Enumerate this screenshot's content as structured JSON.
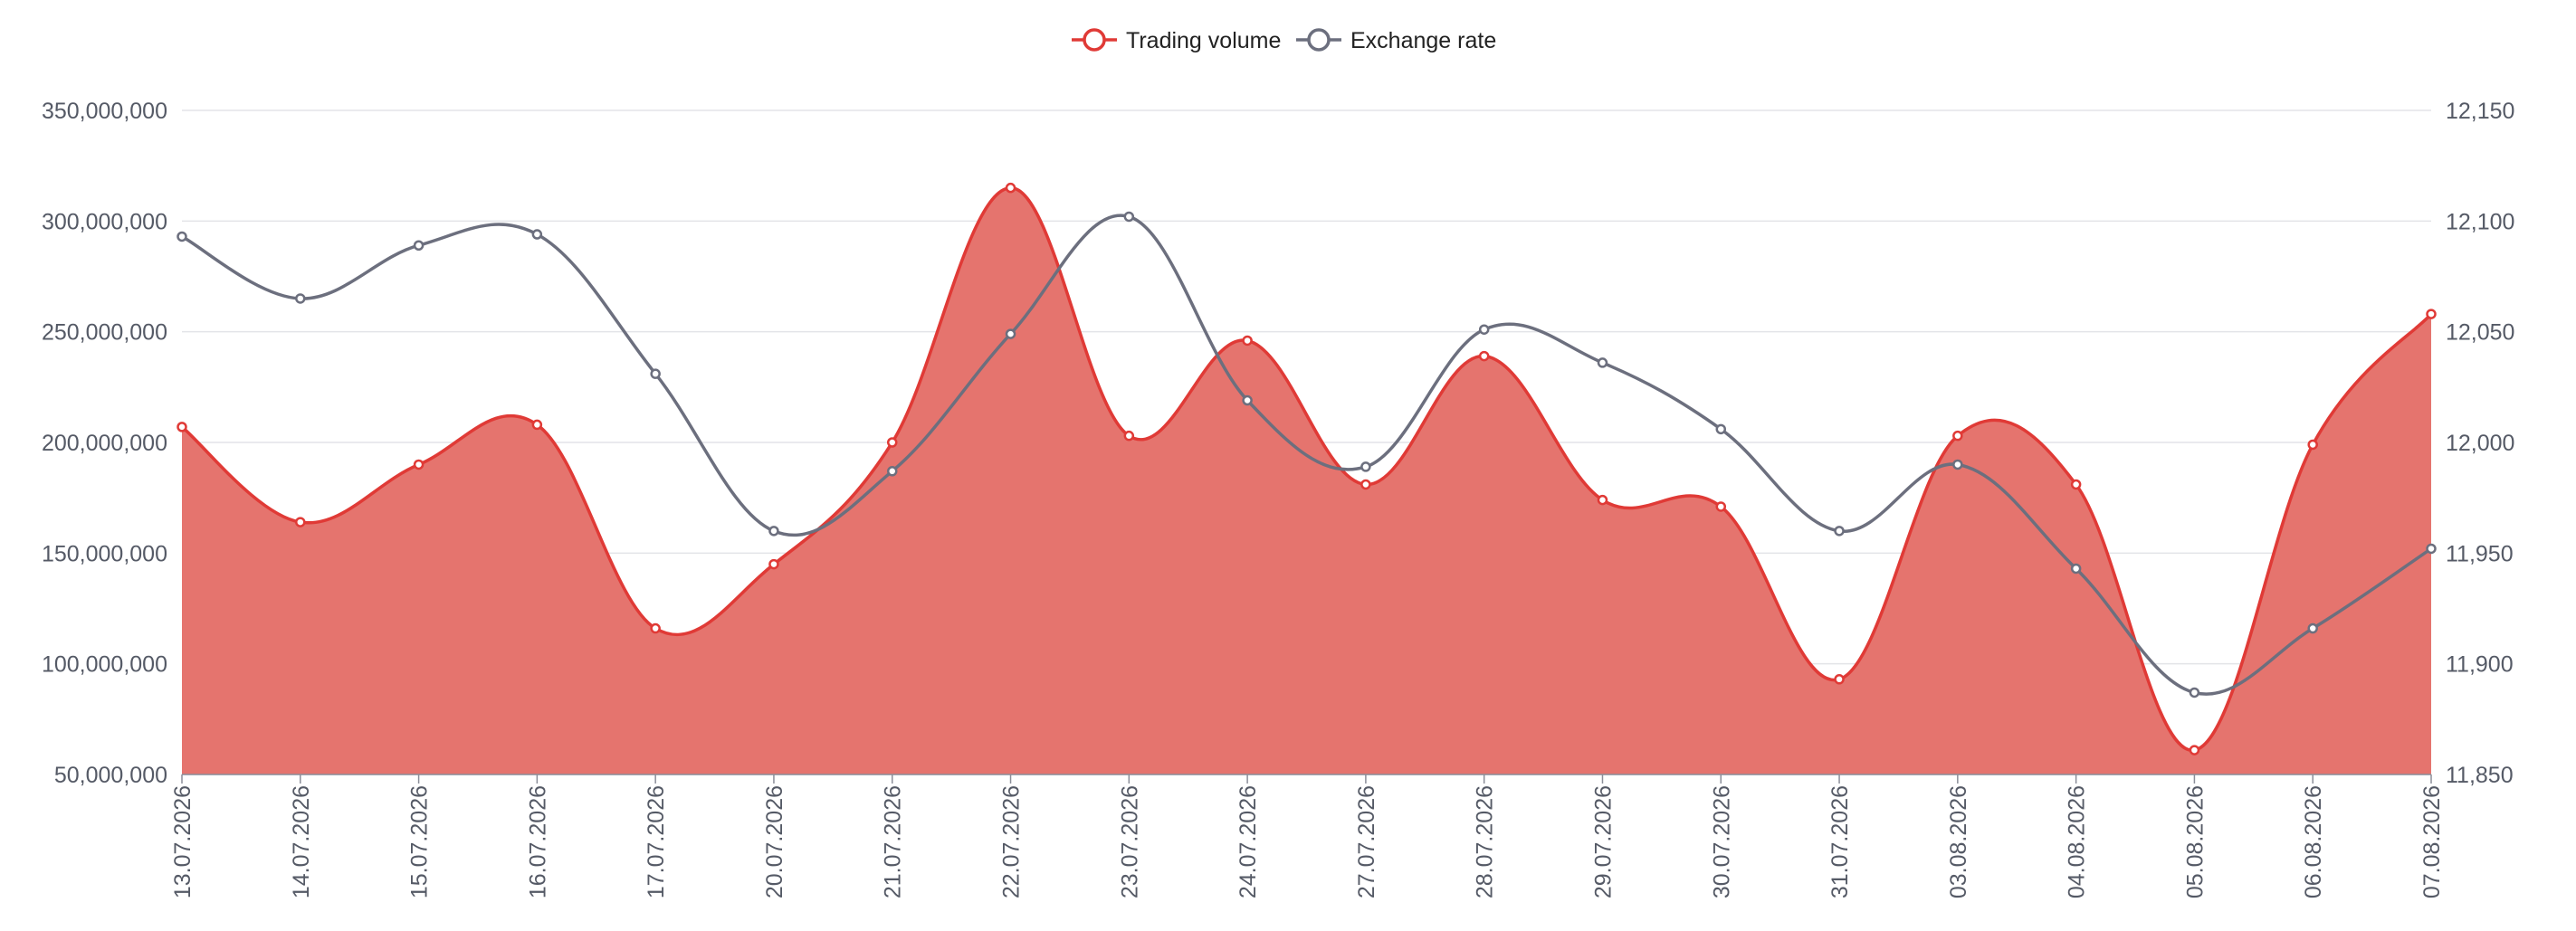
{
  "chart_data": {
    "type": "line",
    "title": "",
    "xlabel": "",
    "ylabel": "",
    "categories": [
      "13.07.2026",
      "14.07.2026",
      "15.07.2026",
      "16.07.2026",
      "17.07.2026",
      "20.07.2026",
      "21.07.2026",
      "22.07.2026",
      "23.07.2026",
      "24.07.2026",
      "27.07.2026",
      "28.07.2026",
      "29.07.2026",
      "30.07.2026",
      "31.07.2026",
      "03.08.2026",
      "04.08.2026",
      "05.08.2026",
      "06.08.2026",
      "07.08.2026"
    ],
    "series": [
      {
        "name": "Trading volume",
        "chart_type": "area",
        "axis": "left",
        "color": "#e03a36",
        "fill": "#e5746e",
        "values": [
          207000000,
          164000000,
          190000000,
          208000000,
          116000000,
          145000000,
          200000000,
          315000000,
          203000000,
          246000000,
          181000000,
          239000000,
          174000000,
          171000000,
          93000000,
          203000000,
          181000000,
          61000000,
          199000000,
          258000000
        ]
      },
      {
        "name": "Exchange rate",
        "chart_type": "line",
        "axis": "right",
        "color": "#6c6f7e",
        "values": [
          12093,
          12065,
          12089,
          12094,
          12031,
          11960,
          11987,
          12049,
          12102,
          12019,
          11989,
          12051,
          12036,
          12006,
          11960,
          11990,
          11943,
          11887,
          11916,
          11952
        ]
      }
    ],
    "y_left": {
      "ylim": [
        50000000,
        350000000
      ],
      "ticks": [
        50000000,
        100000000,
        150000000,
        200000000,
        250000000,
        300000000,
        350000000
      ],
      "tick_labels": [
        "50,000,000",
        "100,000,000",
        "150,000,000",
        "200,000,000",
        "250,000,000",
        "300,000,000",
        "350,000,000"
      ]
    },
    "y_right": {
      "ylim": [
        11850,
        12150
      ],
      "ticks": [
        11850,
        11900,
        11950,
        12000,
        12050,
        12100,
        12150
      ],
      "tick_labels": [
        "11,850",
        "11,900",
        "11,950",
        "12,000",
        "12,050",
        "12,100",
        "12,150"
      ]
    },
    "grid": true,
    "legend": "top-center",
    "x_tick_rotation": "vertical"
  }
}
